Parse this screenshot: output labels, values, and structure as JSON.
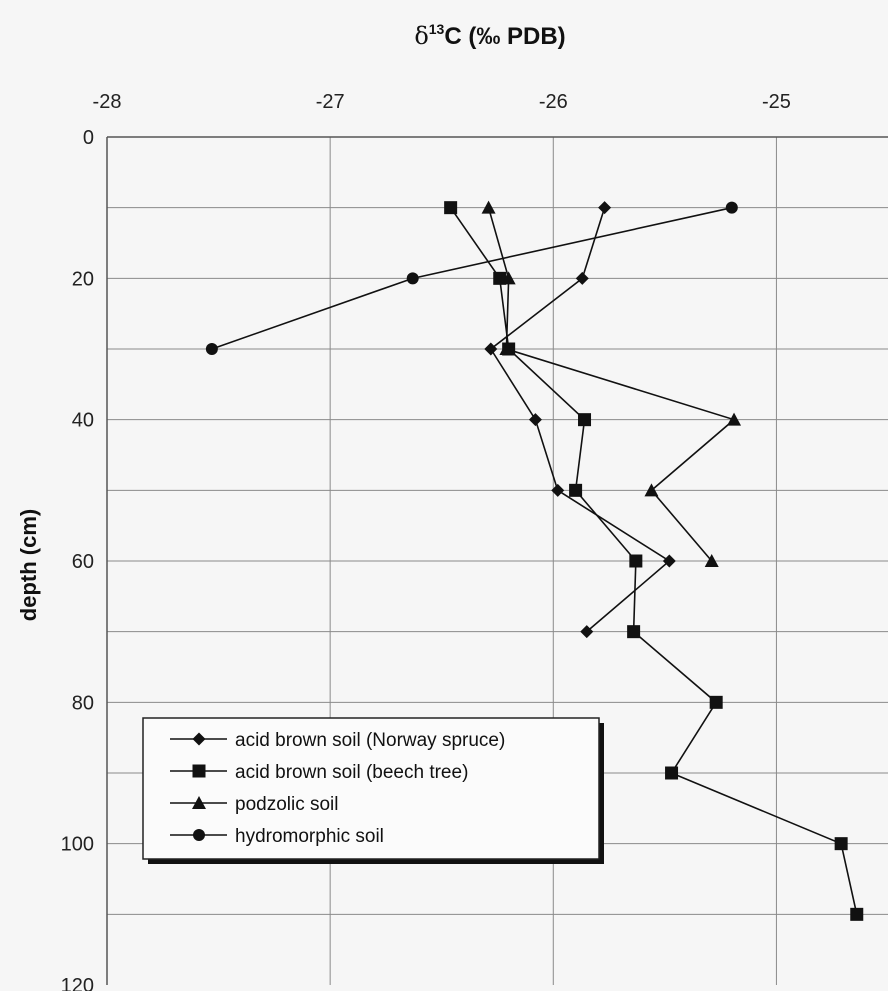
{
  "chart_data": {
    "type": "line",
    "title_prefix": "δ",
    "title_sup": "13",
    "title_suffix": "C (‰ PDB)",
    "ylabel": "depth (cm)",
    "xlim": [
      -28,
      -24.5
    ],
    "ylim": [
      0,
      120
    ],
    "y_inverted": true,
    "x_axis_position": "top",
    "x_ticks": [
      "-28",
      "-27",
      "-26",
      "-25"
    ],
    "y_ticks": [
      "0",
      "20",
      "40",
      "60",
      "80",
      "100",
      "120"
    ],
    "grid": true,
    "legend_position": "bottom-left",
    "series": [
      {
        "name": "acid brown soil (Norway spruce)",
        "marker": "diamond",
        "points": [
          [
            -25.77,
            10
          ],
          [
            -25.87,
            20
          ],
          [
            -26.28,
            30
          ],
          [
            -26.08,
            40
          ],
          [
            -25.98,
            50
          ],
          [
            -25.48,
            60
          ],
          [
            -25.85,
            70
          ]
        ]
      },
      {
        "name": "acid brown soil (beech tree)",
        "marker": "square",
        "points": [
          [
            -26.46,
            10
          ],
          [
            -26.24,
            20
          ],
          [
            -26.2,
            30
          ],
          [
            -25.86,
            40
          ],
          [
            -25.9,
            50
          ],
          [
            -25.63,
            60
          ],
          [
            -25.64,
            70
          ],
          [
            -25.27,
            80
          ],
          [
            -25.47,
            90
          ],
          [
            -24.71,
            100
          ],
          [
            -24.64,
            110
          ]
        ]
      },
      {
        "name": "podzolic soil",
        "marker": "triangle",
        "points": [
          [
            -26.29,
            10
          ],
          [
            -26.2,
            20
          ],
          [
            -26.21,
            30
          ],
          [
            -25.19,
            40
          ],
          [
            -25.56,
            50
          ],
          [
            -25.29,
            60
          ]
        ]
      },
      {
        "name": "hydromorphic soil",
        "marker": "circle",
        "points": [
          [
            -25.2,
            10
          ],
          [
            -26.63,
            20
          ],
          [
            -27.53,
            30
          ]
        ]
      }
    ]
  }
}
